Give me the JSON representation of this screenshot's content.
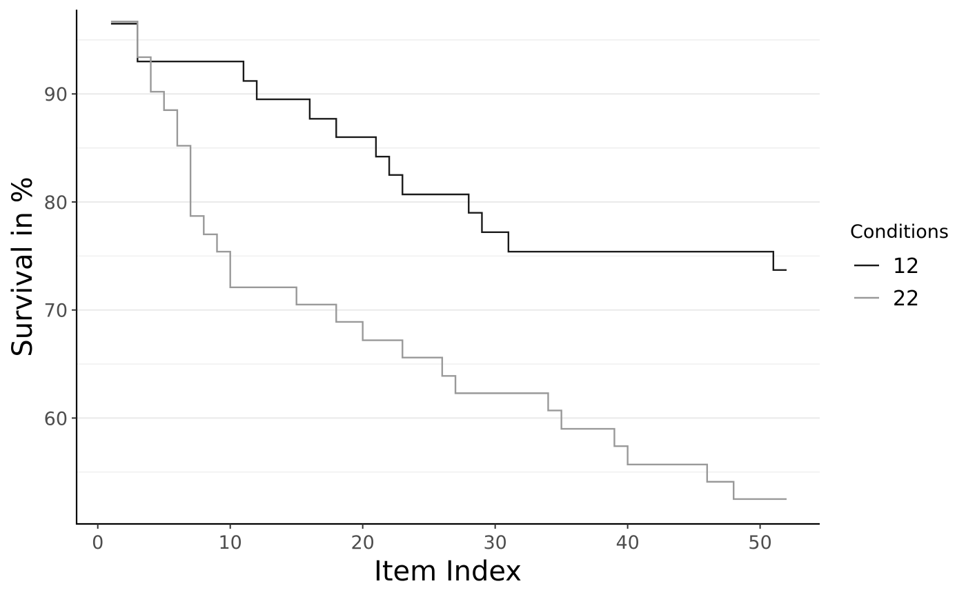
{
  "chart_data": {
    "type": "line",
    "step": true,
    "xlabel": "Item Index",
    "ylabel": "Survival in %",
    "xlim": [
      -1.6,
      54.5
    ],
    "ylim": [
      50.2,
      97.8
    ],
    "x_ticks": [
      0,
      10,
      20,
      30,
      40,
      50
    ],
    "y_ticks": [
      60,
      70,
      80,
      90
    ],
    "y_minor_ticks": [
      55,
      65,
      75,
      85,
      95
    ],
    "grid": "horizontal",
    "legend": {
      "title": "Conditions",
      "position": "right"
    },
    "series": [
      {
        "name": "12",
        "color": "#1a1a1a",
        "x": [
          1,
          3,
          11,
          12,
          16,
          18,
          21,
          22,
          23,
          28,
          29,
          31,
          51,
          52
        ],
        "y": [
          96.5,
          93.0,
          91.2,
          89.5,
          87.7,
          86.0,
          84.2,
          82.5,
          80.7,
          79.0,
          77.2,
          75.4,
          73.7,
          73.7
        ]
      },
      {
        "name": "22",
        "color": "#999999",
        "x": [
          1,
          3,
          4,
          5,
          6,
          7,
          8,
          9,
          10,
          15,
          18,
          20,
          23,
          26,
          27,
          34,
          35,
          39,
          40,
          46,
          48,
          52
        ],
        "y": [
          96.7,
          93.4,
          90.2,
          88.5,
          85.2,
          78.7,
          77.0,
          75.4,
          72.1,
          70.5,
          68.9,
          67.2,
          65.6,
          63.9,
          62.3,
          60.7,
          59.0,
          57.4,
          55.7,
          54.1,
          52.5,
          52.5
        ]
      }
    ]
  }
}
